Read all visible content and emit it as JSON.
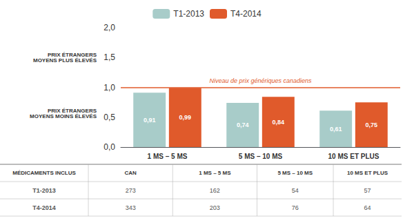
{
  "chart_data": {
    "type": "bar",
    "categories": [
      "1 MS – 5 MS",
      "5 MS – 10 MS",
      "10 MS ET PLUS"
    ],
    "series": [
      {
        "name": "T1-2013",
        "color": "#a8ccc9",
        "values": [
          0.91,
          0.74,
          0.61
        ],
        "value_labels": [
          "0,91",
          "0,74",
          "0,61"
        ]
      },
      {
        "name": "T4-2014",
        "color": "#e05a2b",
        "values": [
          0.99,
          0.84,
          0.75
        ],
        "value_labels": [
          "0,99",
          "0,84",
          "0,75"
        ]
      }
    ],
    "ylim": [
      0.0,
      2.0
    ],
    "yticks": [
      {
        "value": 0.0,
        "label": "0,0"
      },
      {
        "value": 0.5,
        "label": "0,5"
      },
      {
        "value": 1.0,
        "label": "1,0"
      },
      {
        "value": 1.5,
        "label": "1,5"
      },
      {
        "value": 2.0,
        "label": "2,0"
      }
    ],
    "grid": false,
    "legend": "top",
    "data_labels": true,
    "reference": {
      "y": 1.0,
      "label": "Niveau de prix génériques canadiens",
      "color": "#e05a2b"
    },
    "side_labels": [
      "PRIX ÉTRANGERS\nMOYENS PLUS ÉLEVÉS",
      "PRIX ÉTRANGERS\nMOYENS MOINS ÉLEVÉS"
    ],
    "table": {
      "header": [
        "MÉDICAMENTS INCLUS",
        "CAN",
        "1 MS – 5 MS",
        "5 MS – 10 MS",
        "10 MS ET PLUS"
      ],
      "rows": [
        [
          "T1-2013",
          "273",
          "162",
          "54",
          "57"
        ],
        [
          "T4-2014",
          "343",
          "203",
          "76",
          "64"
        ]
      ]
    }
  }
}
